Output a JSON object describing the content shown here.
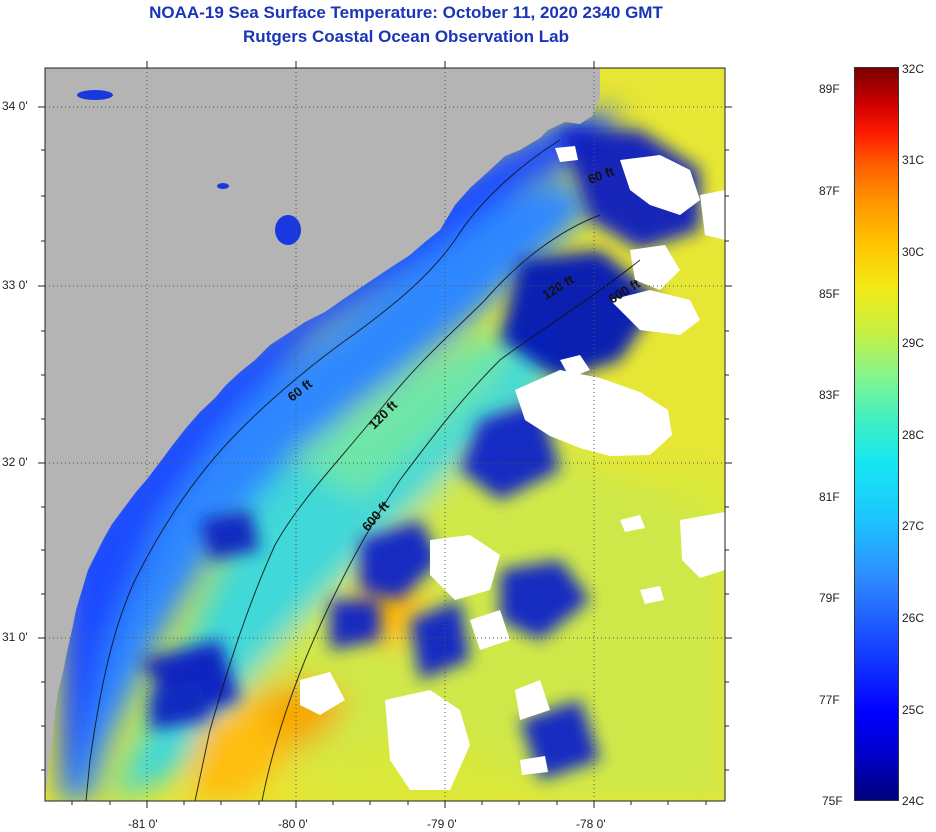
{
  "title": {
    "line1": "NOAA-19 Sea Surface Temperature:  October 11, 2020 2340 GMT",
    "line2": "Rutgers Coastal Ocean Observation Lab"
  },
  "map": {
    "land_color": "#b4b4b4",
    "cloud_color": "#ffffff",
    "latitude_labels": [
      "34 0'",
      "33 0'",
      "32 0'",
      "31 0'"
    ],
    "longitude_labels": [
      "-81 0'",
      "-80 0'",
      "-79 0'",
      "-78 0'"
    ],
    "isobath_labels": [
      "60 ft",
      "120 ft",
      "600 ft",
      "60 ft",
      "120 ft",
      "600 ft"
    ]
  },
  "colorbar": {
    "fahrenheit_labels": [
      "89F",
      "87F",
      "85F",
      "83F",
      "81F",
      "79F",
      "77F",
      "75F"
    ],
    "celsius_labels": [
      "32C",
      "31C",
      "30C",
      "29C",
      "28C",
      "27C",
      "26C",
      "25C",
      "24C"
    ],
    "colors": [
      "#00007a",
      "#0000ff",
      "#2f88ff",
      "#16e6f2",
      "#86f58c",
      "#f3ea16",
      "#ff9200",
      "#ff1c00",
      "#7c0000"
    ]
  }
}
